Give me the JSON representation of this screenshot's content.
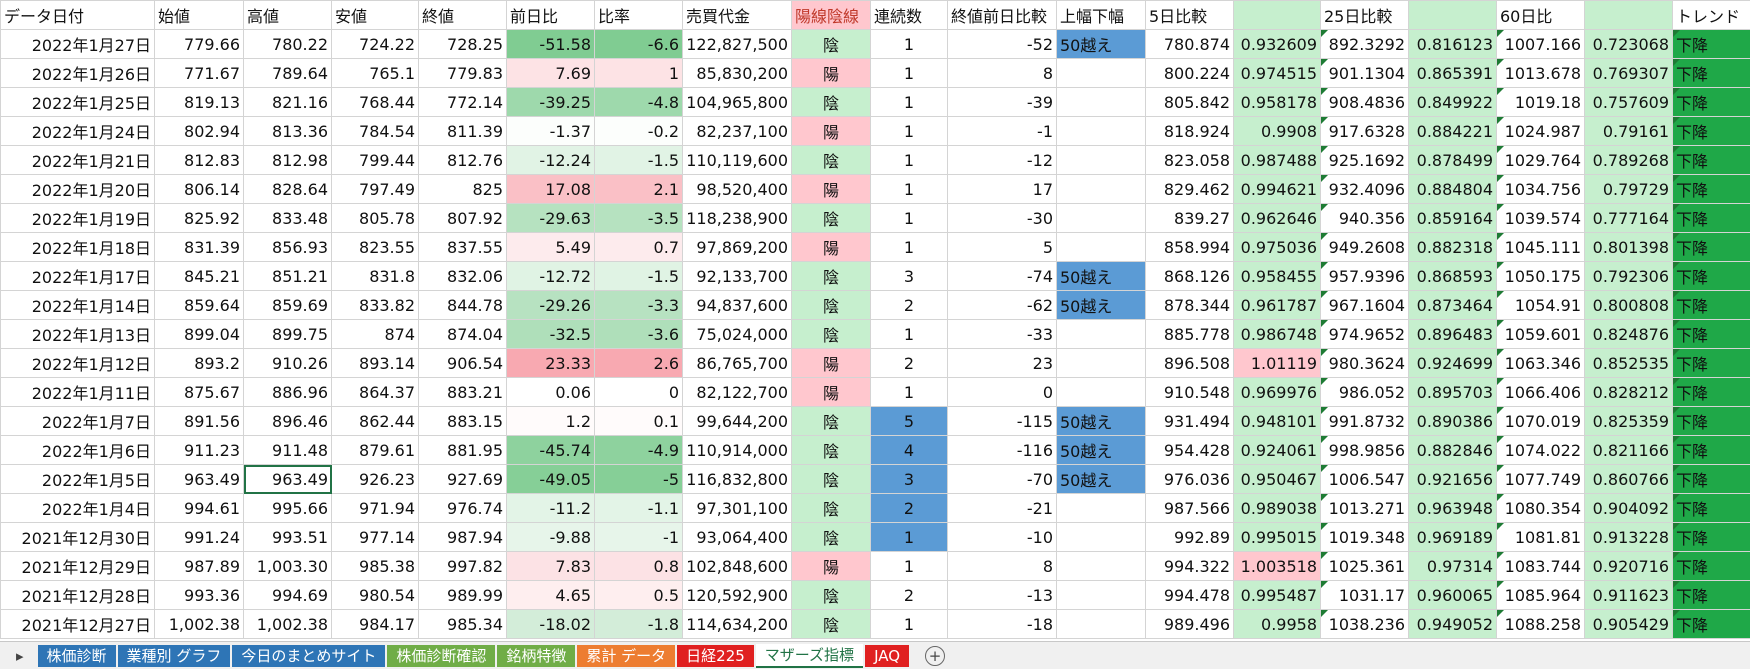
{
  "table": {
    "headers": [
      "データ日付",
      "始値",
      "高値",
      "安値",
      "終値",
      "前日比",
      "比率",
      "売買代金",
      "陽線陰線",
      "連続数",
      "終値前日比較",
      "上幅下幅",
      "5日比較",
      null,
      "25日比較",
      null,
      "60日比",
      null,
      "トレンド"
    ],
    "rows": [
      [
        "2022年1月27日",
        "779.66",
        "780.22",
        "724.22",
        "728.25",
        "-51.58",
        "-6.6",
        "122,827,500",
        "陰",
        "1",
        "-52",
        "50越え",
        "780.874",
        "0.932609",
        "892.3292",
        "0.816123",
        "1007.166",
        "0.723068",
        "下降"
      ],
      [
        "2022年1月26日",
        "771.67",
        "789.64",
        "765.1",
        "779.83",
        "7.69",
        "1",
        "85,830,200",
        "陽",
        "1",
        "8",
        null,
        "800.224",
        "0.974515",
        "901.1304",
        "0.865391",
        "1013.678",
        "0.769307",
        "下降"
      ],
      [
        "2022年1月25日",
        "819.13",
        "821.16",
        "768.44",
        "772.14",
        "-39.25",
        "-4.8",
        "104,965,800",
        "陰",
        "1",
        "-39",
        null,
        "805.842",
        "0.958178",
        "908.4836",
        "0.849922",
        "1019.18",
        "0.757609",
        "下降"
      ],
      [
        "2022年1月24日",
        "802.94",
        "813.36",
        "784.54",
        "811.39",
        "-1.37",
        "-0.2",
        "82,237,100",
        "陽",
        "1",
        "-1",
        null,
        "818.924",
        "0.9908",
        "917.6328",
        "0.884221",
        "1024.987",
        "0.79161",
        "下降"
      ],
      [
        "2022年1月21日",
        "812.83",
        "812.98",
        "799.44",
        "812.76",
        "-12.24",
        "-1.5",
        "110,119,600",
        "陰",
        "1",
        "-12",
        null,
        "823.058",
        "0.987488",
        "925.1692",
        "0.878499",
        "1029.764",
        "0.789268",
        "下降"
      ],
      [
        "2022年1月20日",
        "806.14",
        "828.64",
        "797.49",
        "825",
        "17.08",
        "2.1",
        "98,520,400",
        "陽",
        "1",
        "17",
        null,
        "829.462",
        "0.994621",
        "932.4096",
        "0.884804",
        "1034.756",
        "0.79729",
        "下降"
      ],
      [
        "2022年1月19日",
        "825.92",
        "833.48",
        "805.78",
        "807.92",
        "-29.63",
        "-3.5",
        "118,238,900",
        "陰",
        "1",
        "-30",
        null,
        "839.27",
        "0.962646",
        "940.356",
        "0.859164",
        "1039.574",
        "0.777164",
        "下降"
      ],
      [
        "2022年1月18日",
        "831.39",
        "856.93",
        "823.55",
        "837.55",
        "5.49",
        "0.7",
        "97,869,200",
        "陽",
        "1",
        "5",
        null,
        "858.994",
        "0.975036",
        "949.2608",
        "0.882318",
        "1045.111",
        "0.801398",
        "下降"
      ],
      [
        "2022年1月17日",
        "845.21",
        "851.21",
        "831.8",
        "832.06",
        "-12.72",
        "-1.5",
        "92,133,700",
        "陰",
        "3",
        "-74",
        "50越え",
        "868.126",
        "0.958455",
        "957.9396",
        "0.868593",
        "1050.175",
        "0.792306",
        "下降"
      ],
      [
        "2022年1月14日",
        "859.64",
        "859.69",
        "833.82",
        "844.78",
        "-29.26",
        "-3.3",
        "94,837,600",
        "陰",
        "2",
        "-62",
        "50越え",
        "878.344",
        "0.961787",
        "967.1604",
        "0.873464",
        "1054.91",
        "0.800808",
        "下降"
      ],
      [
        "2022年1月13日",
        "899.04",
        "899.75",
        "874",
        "874.04",
        "-32.5",
        "-3.6",
        "75,024,000",
        "陰",
        "1",
        "-33",
        null,
        "885.778",
        "0.986748",
        "974.9652",
        "0.896483",
        "1059.601",
        "0.824876",
        "下降"
      ],
      [
        "2022年1月12日",
        "893.2",
        "910.26",
        "893.14",
        "906.54",
        "23.33",
        "2.6",
        "86,765,700",
        "陽",
        "2",
        "23",
        null,
        "896.508",
        "1.01119",
        "980.3624",
        "0.924699",
        "1063.346",
        "0.852535",
        "下降"
      ],
      [
        "2022年1月11日",
        "875.67",
        "886.96",
        "864.37",
        "883.21",
        "0.06",
        "0",
        "82,122,700",
        "陽",
        "1",
        "0",
        null,
        "910.548",
        "0.969976",
        "986.052",
        "0.895703",
        "1066.406",
        "0.828212",
        "下降"
      ],
      [
        "2022年1月7日",
        "891.56",
        "896.46",
        "862.44",
        "883.15",
        "1.2",
        "0.1",
        "99,644,200",
        "陰",
        "5",
        "-115",
        "50越え",
        "931.494",
        "0.948101",
        "991.8732",
        "0.890386",
        "1070.019",
        "0.825359",
        "下降"
      ],
      [
        "2022年1月6日",
        "911.23",
        "911.48",
        "879.61",
        "881.95",
        "-45.74",
        "-4.9",
        "110,914,000",
        "陰",
        "4",
        "-116",
        "50越え",
        "954.428",
        "0.924061",
        "998.9856",
        "0.882846",
        "1074.022",
        "0.821166",
        "下降"
      ],
      [
        "2022年1月5日",
        "963.49",
        "963.49",
        "926.23",
        "927.69",
        "-49.05",
        "-5",
        "116,832,800",
        "陰",
        "3",
        "-70",
        "50越え",
        "976.036",
        "0.950467",
        "1006.547",
        "0.921656",
        "1077.749",
        "0.860766",
        "下降"
      ],
      [
        "2022年1月4日",
        "994.61",
        "995.66",
        "971.94",
        "976.74",
        "-11.2",
        "-1.1",
        "97,301,100",
        "陰",
        "2",
        "-21",
        null,
        "987.566",
        "0.989038",
        "1013.271",
        "0.963948",
        "1080.354",
        "0.904092",
        "下降"
      ],
      [
        "2021年12月30日",
        "991.24",
        "993.51",
        "977.14",
        "987.94",
        "-9.88",
        "-1",
        "93,064,400",
        "陰",
        "1",
        "-10",
        null,
        "992.89",
        "0.995015",
        "1019.348",
        "0.969189",
        "1081.81",
        "0.913228",
        "下降"
      ],
      [
        "2021年12月29日",
        "987.89",
        "1,003.30",
        "985.38",
        "997.82",
        "7.83",
        "0.8",
        "102,848,600",
        "陽",
        "1",
        "8",
        null,
        "994.322",
        "1.003518",
        "1025.361",
        "0.97314",
        "1083.744",
        "0.920716",
        "下降"
      ],
      [
        "2021年12月28日",
        "993.36",
        "994.69",
        "980.54",
        "989.99",
        "4.65",
        "0.5",
        "120,592,900",
        "陰",
        "2",
        "-13",
        null,
        "994.478",
        "0.995487",
        "1031.17",
        "0.960065",
        "1085.964",
        "0.911623",
        "下降"
      ],
      [
        "2021年12月27日",
        "1,002.38",
        "1,002.38",
        "984.17",
        "985.34",
        "-18.02",
        "-1.8",
        "114,634,200",
        "陰",
        "1",
        "-18",
        null,
        "989.496",
        "0.9958",
        "1038.236",
        "0.949052",
        "1088.258",
        "0.905429",
        "下降"
      ]
    ]
  },
  "tabs": [
    "株価診断",
    "業種別 グラフ",
    "今日のまとめサイト",
    "株価診断確認",
    "銘柄特徴",
    "累計 データ",
    "日経225",
    "マザーズ指標",
    "JAQ"
  ]
}
